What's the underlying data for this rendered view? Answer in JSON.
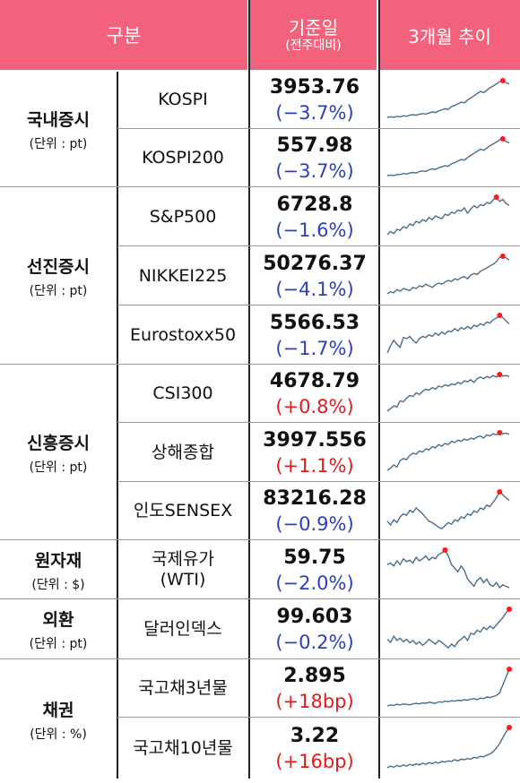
{
  "header": {
    "category": "구분",
    "base_date": "기준일",
    "base_sub": "(전주대비)",
    "trend": "3개월 추이"
  },
  "colors": {
    "header_bg": "#f2627c",
    "down": "#2a3fbf",
    "up": "#e01b1b",
    "sparkline": "#4a6d8c",
    "peak_marker": "#ff1a1a"
  },
  "groups": [
    {
      "name": "국내증시",
      "unit": "(단위 : pt)",
      "rows": [
        {
          "item": "KOSPI",
          "value": "3953.76",
          "change": "(−3.7%)",
          "dir": "down",
          "trend": [
            30,
            31,
            30,
            32,
            31,
            33,
            32,
            34,
            35,
            34,
            36,
            37,
            36,
            38,
            40,
            39,
            42,
            44,
            46,
            45,
            50,
            52,
            55,
            58,
            57,
            62,
            66,
            70,
            74,
            78,
            76,
            80,
            85,
            88,
            92,
            96,
            98,
            94,
            92
          ]
        },
        {
          "item": "KOSPI200",
          "value": "557.98",
          "change": "(−3.7%)",
          "dir": "down",
          "trend": [
            28,
            29,
            28,
            30,
            30,
            32,
            31,
            33,
            34,
            33,
            36,
            37,
            36,
            39,
            41,
            40,
            43,
            45,
            47,
            46,
            51,
            53,
            56,
            59,
            58,
            63,
            67,
            71,
            75,
            79,
            77,
            81,
            86,
            89,
            93,
            97,
            99,
            94,
            91
          ]
        }
      ]
    },
    {
      "name": "선진증시",
      "unit": "(단위 : pt)",
      "rows": [
        {
          "item": "S&P500",
          "value": "6728.8",
          "change": "(−1.6%)",
          "dir": "down",
          "trend": [
            30,
            36,
            32,
            40,
            38,
            45,
            42,
            50,
            47,
            55,
            52,
            58,
            55,
            62,
            58,
            65,
            62,
            60,
            68,
            66,
            72,
            70,
            76,
            74,
            80,
            70,
            78,
            84,
            80,
            86,
            84,
            90,
            88,
            95,
            100,
            92,
            96,
            88,
            85
          ]
        },
        {
          "item": "NIKKEI225",
          "value": "50276.37",
          "change": "(−4.1%)",
          "dir": "down",
          "trend": [
            30,
            34,
            32,
            38,
            35,
            40,
            38,
            36,
            42,
            40,
            45,
            43,
            48,
            45,
            42,
            47,
            50,
            48,
            52,
            55,
            53,
            58,
            56,
            60,
            62,
            58,
            65,
            68,
            66,
            72,
            75,
            78,
            82,
            85,
            90,
            98,
            100,
            97,
            93
          ]
        },
        {
          "item": "Eurostoxx50",
          "value": "5566.53",
          "change": "(−1.7%)",
          "dir": "down",
          "trend": [
            32,
            45,
            55,
            48,
            42,
            60,
            58,
            62,
            55,
            50,
            58,
            62,
            60,
            65,
            62,
            68,
            64,
            70,
            66,
            72,
            70,
            76,
            72,
            78,
            75,
            80,
            76,
            82,
            80,
            85,
            82,
            88,
            86,
            92,
            95,
            100,
            96,
            90,
            85
          ]
        }
      ]
    },
    {
      "name": "신흥증시",
      "unit": "(단위 : pt)",
      "rows": [
        {
          "item": "CSI300",
          "value": "4678.79",
          "change": "(+0.8%)",
          "dir": "up",
          "trend": [
            30,
            35,
            40,
            38,
            50,
            48,
            55,
            60,
            58,
            65,
            62,
            68,
            72,
            70,
            75,
            72,
            78,
            76,
            80,
            78,
            82,
            80,
            85,
            82,
            88,
            86,
            90,
            85,
            92,
            95,
            92,
            96,
            94,
            98,
            95,
            100,
            97,
            98,
            96
          ]
        },
        {
          "item": "상해종합",
          "value": "3997.556",
          "change": "(+1.1%)",
          "dir": "up",
          "trend": [
            30,
            34,
            40,
            36,
            48,
            52,
            50,
            58,
            62,
            60,
            66,
            64,
            70,
            68,
            74,
            72,
            78,
            75,
            80,
            78,
            84,
            82,
            86,
            84,
            88,
            86,
            90,
            88,
            92,
            94,
            90,
            96,
            94,
            98,
            96,
            100,
            98,
            99,
            97
          ]
        },
        {
          "item": "인도SENSEX",
          "value": "83216.28",
          "change": "(−0.9%)",
          "dir": "down",
          "trend": [
            60,
            55,
            62,
            58,
            66,
            70,
            68,
            75,
            72,
            78,
            74,
            70,
            65,
            60,
            58,
            55,
            52,
            50,
            54,
            58,
            56,
            62,
            60,
            66,
            64,
            70,
            68,
            74,
            72,
            78,
            76,
            82,
            80,
            86,
            92,
            100,
            96,
            92,
            88
          ]
        }
      ]
    },
    {
      "name": "원자재",
      "unit": "(단위 : $)",
      "rows": [
        {
          "item": "국제유가\n(WTI)",
          "value": "59.75",
          "change": "(−2.0%)",
          "dir": "down",
          "trend": [
            80,
            82,
            78,
            85,
            80,
            88,
            84,
            86,
            82,
            90,
            85,
            88,
            92,
            86,
            90,
            88,
            94,
            96,
            100,
            92,
            80,
            75,
            70,
            78,
            72,
            60,
            55,
            50,
            58,
            62,
            55,
            60,
            52,
            50,
            55,
            48,
            52,
            50,
            48
          ]
        }
      ]
    },
    {
      "name": "외환",
      "unit": "(단위 : pt)",
      "rows": [
        {
          "item": "달러인덱스",
          "value": "99.603",
          "change": "(−0.2%)",
          "dir": "down",
          "trend": [
            50,
            45,
            55,
            48,
            52,
            46,
            50,
            44,
            48,
            42,
            46,
            40,
            44,
            50,
            46,
            42,
            48,
            45,
            40,
            36,
            42,
            38,
            46,
            50,
            55,
            48,
            60,
            58,
            65,
            62,
            70,
            66,
            72,
            68,
            74,
            80,
            86,
            94,
            100
          ]
        }
      ]
    },
    {
      "name": "채권",
      "unit": "(단위 : %)",
      "rows": [
        {
          "item": "국고채3년물",
          "value": "2.895",
          "change": "(+18bp)",
          "dir": "up",
          "trend": [
            30,
            32,
            31,
            33,
            32,
            34,
            33,
            32,
            34,
            35,
            34,
            36,
            35,
            37,
            36,
            35,
            38,
            37,
            39,
            38,
            40,
            39,
            41,
            40,
            42,
            41,
            43,
            44,
            42,
            45,
            44,
            47,
            46,
            48,
            50,
            55,
            70,
            85,
            100
          ]
        },
        {
          "item": "국고채10년물",
          "value": "3.22",
          "change": "(+16bp)",
          "dir": "up",
          "trend": [
            30,
            33,
            31,
            34,
            32,
            35,
            33,
            36,
            34,
            37,
            35,
            38,
            36,
            39,
            37,
            40,
            38,
            41,
            40,
            42,
            41,
            44,
            42,
            45,
            44,
            46,
            45,
            48,
            47,
            50,
            49,
            52,
            54,
            58,
            64,
            72,
            82,
            92,
            100
          ]
        }
      ]
    }
  ]
}
